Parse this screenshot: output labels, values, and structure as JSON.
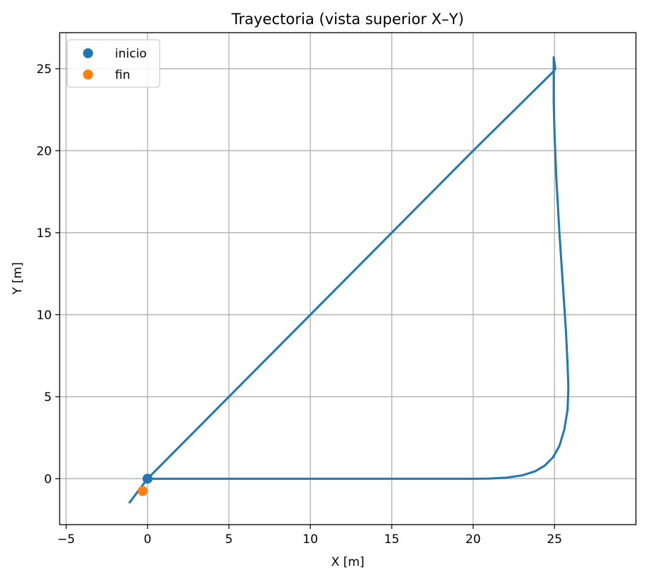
{
  "chart_data": {
    "type": "line",
    "title": "Trayectoria (vista superior X–Y)",
    "xlabel": "X [m]",
    "ylabel": "Y [m]",
    "xlim": [
      -5.4,
      30.0
    ],
    "ylim": [
      -2.8,
      27.2
    ],
    "xticks": [
      -5,
      0,
      5,
      10,
      15,
      20,
      25
    ],
    "yticks": [
      0,
      5,
      10,
      15,
      20,
      25
    ],
    "grid": true,
    "legend_position": "top-left",
    "series": [
      {
        "kind": "line",
        "color": "#1f77b4",
        "points": [
          [
            0.0,
            0.0
          ],
          [
            5.0,
            0.0
          ],
          [
            10.0,
            0.0
          ],
          [
            15.0,
            0.0
          ],
          [
            20.0,
            0.0
          ],
          [
            21.0,
            0.01
          ],
          [
            22.0,
            0.06
          ],
          [
            23.0,
            0.2
          ],
          [
            23.8,
            0.45
          ],
          [
            24.4,
            0.8
          ],
          [
            24.9,
            1.3
          ],
          [
            25.3,
            2.0
          ],
          [
            25.6,
            3.0
          ],
          [
            25.8,
            4.2
          ],
          [
            25.85,
            5.5
          ],
          [
            25.8,
            7.0
          ],
          [
            25.7,
            9.0
          ],
          [
            25.5,
            12.0
          ],
          [
            25.3,
            15.0
          ],
          [
            25.1,
            18.5
          ],
          [
            25.0,
            21.0
          ],
          [
            24.95,
            23.0
          ],
          [
            24.95,
            24.5
          ],
          [
            24.95,
            25.7
          ],
          [
            25.05,
            25.0
          ],
          [
            24.9,
            24.8
          ],
          [
            20.0,
            20.0
          ],
          [
            15.0,
            15.0
          ],
          [
            10.0,
            10.0
          ],
          [
            5.0,
            5.0
          ],
          [
            0.0,
            0.0
          ],
          [
            -0.5,
            -0.65
          ],
          [
            -1.1,
            -1.45
          ]
        ]
      },
      {
        "name": "inicio",
        "kind": "scatter",
        "color": "#1f77b4",
        "points": [
          [
            0.0,
            0.0
          ]
        ]
      },
      {
        "name": "fin",
        "kind": "scatter",
        "color": "#ff7f0e",
        "points": [
          [
            -0.3,
            -0.75
          ]
        ]
      }
    ]
  }
}
